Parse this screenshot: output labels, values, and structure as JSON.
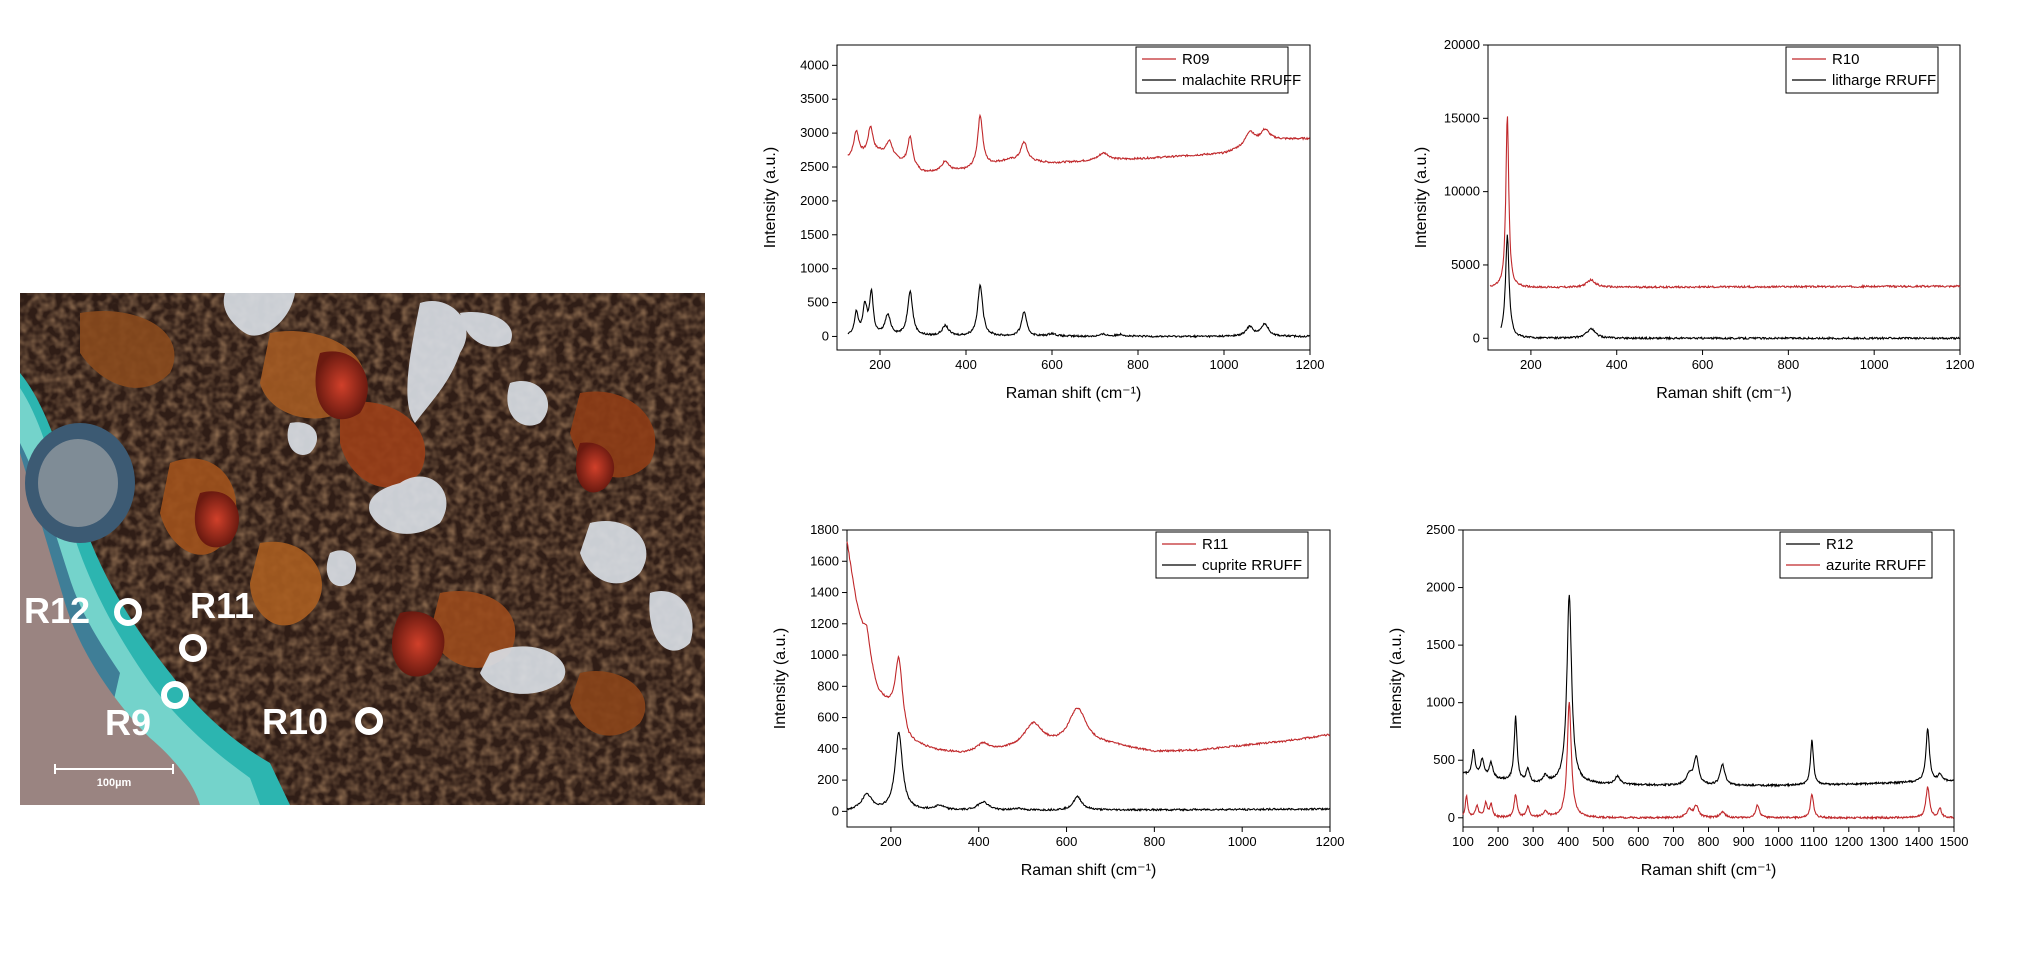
{
  "micrograph": {
    "labels": [
      "R12",
      "R11",
      "R9",
      "R10"
    ],
    "scale_label": "100µm"
  },
  "chart_data": [
    {
      "type": "line",
      "xlabel": "Raman shift (cm⁻¹)",
      "ylabel": "Intensity (a.u.)",
      "xlim": [
        100,
        1200
      ],
      "ylim": [
        -200,
        4300
      ],
      "xticks": [
        200,
        400,
        600,
        800,
        1000,
        1200
      ],
      "yticks": [
        0,
        500,
        1000,
        1500,
        2000,
        2500,
        3000,
        3500,
        4000
      ],
      "legend_position": "top-right",
      "series": [
        {
          "name": "R09",
          "color": "#c0282b",
          "baseline": [
            [
              125,
              2620
            ],
            [
              200,
              2700
            ],
            [
              300,
              2420
            ],
            [
              400,
              2450
            ],
            [
              500,
              2600
            ],
            [
              600,
              2560
            ],
            [
              800,
              2620
            ],
            [
              1000,
              2700
            ],
            [
              1100,
              2900
            ],
            [
              1200,
              2920
            ]
          ],
          "peaks": [
            [
              145,
              380,
              7
            ],
            [
              178,
              400,
              7
            ],
            [
              222,
              230,
              9
            ],
            [
              270,
              430,
              7
            ],
            [
              352,
              150,
              9
            ],
            [
              433,
              760,
              7
            ],
            [
              535,
              280,
              9
            ],
            [
              720,
              110,
              15
            ],
            [
              1060,
              200,
              12
            ],
            [
              1095,
              150,
              12
            ]
          ]
        },
        {
          "name": "malachite RRUFF",
          "color": "#000000",
          "baseline": [
            [
              125,
              0
            ],
            [
              1200,
              0
            ]
          ],
          "peaks": [
            [
              145,
              340,
              5
            ],
            [
              165,
              430,
              6
            ],
            [
              180,
              620,
              5
            ],
            [
              218,
              300,
              8
            ],
            [
              270,
              660,
              7
            ],
            [
              352,
              150,
              9
            ],
            [
              433,
              750,
              7
            ],
            [
              535,
              360,
              7
            ],
            [
              600,
              40,
              10
            ],
            [
              720,
              30,
              10
            ],
            [
              760,
              30,
              10
            ],
            [
              1060,
              140,
              10
            ],
            [
              1095,
              180,
              10
            ]
          ]
        }
      ]
    },
    {
      "type": "line",
      "xlabel": "Raman shift (cm⁻¹)",
      "ylabel": "Intensity (a.u.)",
      "xlim": [
        100,
        1200
      ],
      "ylim": [
        -800,
        20000
      ],
      "xticks": [
        200,
        400,
        600,
        800,
        1000,
        1200
      ],
      "yticks": [
        0,
        5000,
        10000,
        15000,
        20000
      ],
      "legend_position": "top-right",
      "series": [
        {
          "name": "R10",
          "color": "#c0282b",
          "baseline": [
            [
              105,
              3450
            ],
            [
              1200,
              3550
            ]
          ],
          "peaks": [
            [
              145,
              11800,
              4
            ],
            [
              340,
              500,
              12
            ]
          ]
        },
        {
          "name": "litharge RRUFF",
          "color": "#000000",
          "baseline": [
            [
              130,
              0
            ],
            [
              1200,
              0
            ]
          ],
          "peaks": [
            [
              145,
              7000,
              5
            ],
            [
              340,
              650,
              12
            ],
            [
              1045,
              30,
              6
            ]
          ]
        }
      ]
    },
    {
      "type": "line",
      "xlabel": "Raman shift (cm⁻¹)",
      "ylabel": "Intensity (a.u.)",
      "xlim": [
        100,
        1200
      ],
      "ylim": [
        -100,
        1800
      ],
      "xticks": [
        200,
        400,
        600,
        800,
        1000,
        1200
      ],
      "yticks": [
        0,
        200,
        400,
        600,
        800,
        1000,
        1200,
        1400,
        1600,
        1800
      ],
      "legend_position": "top-right",
      "series": [
        {
          "name": "R11",
          "color": "#c0282b",
          "baseline": [
            [
              100,
              1720
            ],
            [
              120,
              1350
            ],
            [
              140,
              1080
            ],
            [
              170,
              760
            ],
            [
              200,
              640
            ],
            [
              240,
              440
            ],
            [
              300,
              390
            ],
            [
              360,
              370
            ],
            [
              500,
              400
            ],
            [
              700,
              420
            ],
            [
              800,
              380
            ],
            [
              900,
              390
            ],
            [
              1000,
              420
            ],
            [
              1100,
              450
            ],
            [
              1200,
              490
            ]
          ],
          "peaks": [
            [
              145,
              150,
              8
            ],
            [
              218,
              430,
              10
            ],
            [
              410,
              50,
              15
            ],
            [
              525,
              150,
              25
            ],
            [
              625,
              240,
              25
            ]
          ]
        },
        {
          "name": "cuprite RRUFF",
          "color": "#000000",
          "baseline": [
            [
              100,
              0
            ],
            [
              1200,
              15
            ]
          ],
          "peaks": [
            [
              145,
              100,
              15
            ],
            [
              218,
              500,
              10
            ],
            [
              310,
              30,
              15
            ],
            [
              410,
              55,
              15
            ],
            [
              490,
              12,
              12
            ],
            [
              625,
              85,
              12
            ]
          ]
        }
      ]
    },
    {
      "type": "line",
      "xlabel": "Raman shift (cm⁻¹)",
      "ylabel": "Intensity (a.u.)",
      "xlim": [
        100,
        1500
      ],
      "ylim": [
        -80,
        2500
      ],
      "xticks": [
        100,
        200,
        300,
        400,
        500,
        600,
        700,
        800,
        900,
        1000,
        1100,
        1200,
        1300,
        1400,
        1500
      ],
      "yticks": [
        0,
        500,
        1000,
        1500,
        2000,
        2500
      ],
      "legend_position": "top-right",
      "series": [
        {
          "name": "R12",
          "color": "#000000",
          "baseline": [
            [
              100,
              380
            ],
            [
              200,
              330
            ],
            [
              300,
              290
            ],
            [
              400,
              300
            ],
            [
              500,
              290
            ],
            [
              700,
              280
            ],
            [
              1000,
              280
            ],
            [
              1200,
              290
            ],
            [
              1500,
              320
            ]
          ],
          "peaks": [
            [
              130,
              220,
              5
            ],
            [
              155,
              150,
              6
            ],
            [
              180,
              130,
              6
            ],
            [
              250,
              560,
              5
            ],
            [
              285,
              120,
              6
            ],
            [
              335,
              60,
              8
            ],
            [
              403,
              1640,
              8
            ],
            [
              540,
              70,
              8
            ],
            [
              745,
              90,
              10
            ],
            [
              765,
              240,
              8
            ],
            [
              840,
              180,
              8
            ],
            [
              1095,
              390,
              5
            ],
            [
              1425,
              460,
              6
            ],
            [
              1460,
              60,
              6
            ]
          ]
        },
        {
          "name": "azurite RRUFF",
          "color": "#c0282b",
          "baseline": [
            [
              100,
              0
            ],
            [
              1500,
              0
            ]
          ],
          "peaks": [
            [
              110,
              190,
              4
            ],
            [
              140,
              100,
              5
            ],
            [
              165,
              120,
              5
            ],
            [
              180,
              110,
              5
            ],
            [
              250,
              200,
              5
            ],
            [
              285,
              90,
              5
            ],
            [
              335,
              50,
              8
            ],
            [
              403,
              1000,
              7
            ],
            [
              745,
              70,
              8
            ],
            [
              765,
              100,
              8
            ],
            [
              840,
              50,
              8
            ],
            [
              940,
              110,
              6
            ],
            [
              1095,
              210,
              5
            ],
            [
              1425,
              270,
              6
            ],
            [
              1460,
              80,
              5
            ]
          ]
        }
      ]
    }
  ]
}
